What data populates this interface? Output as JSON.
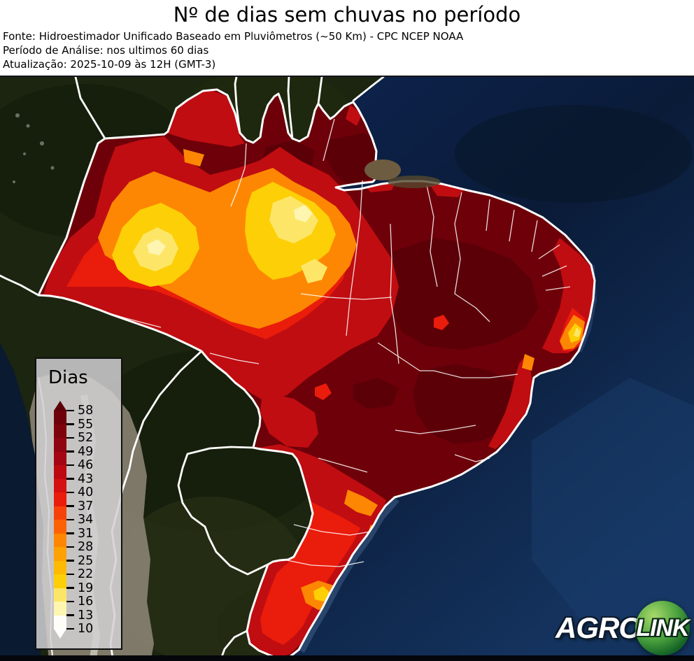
{
  "header": {
    "title": "Nº de dias sem chuvas no período",
    "line_source": "Fonte: Hidroestimador Unificado Baseado em Pluviômetros (~50 Km) - CPC NCEP NOAA",
    "line_period": "Período de Análise: nos ultimos 60 dias",
    "line_updated": "Atualização: 2025-10-09 às 12H (GMT-3)"
  },
  "legend": {
    "title": "Dias",
    "tick_labels": [
      "58",
      "55",
      "52",
      "49",
      "46",
      "43",
      "40",
      "37",
      "34",
      "31",
      "28",
      "25",
      "22",
      "19",
      "16",
      "13",
      "10"
    ],
    "segment_colors_top_to_bottom": [
      "#6e0009",
      "#7e020c",
      "#900310",
      "#a40513",
      "#bc0911",
      "#d51010",
      "#ea1c0b",
      "#f64208",
      "#fb6205",
      "#fd8703",
      "#fea102",
      "#feb902",
      "#fdcf06",
      "#fde667",
      "#fdf5b0",
      "#fefef8"
    ],
    "over_arrow_color": "#5c0008",
    "under_arrow_color": "#fefefe"
  },
  "logo": {
    "agro": "AGRO",
    "link": "LINK"
  },
  "map": {
    "ocean_color": "#0c2145",
    "foreign_land_color": "#1b2510",
    "border_color": "#ffffff"
  }
}
